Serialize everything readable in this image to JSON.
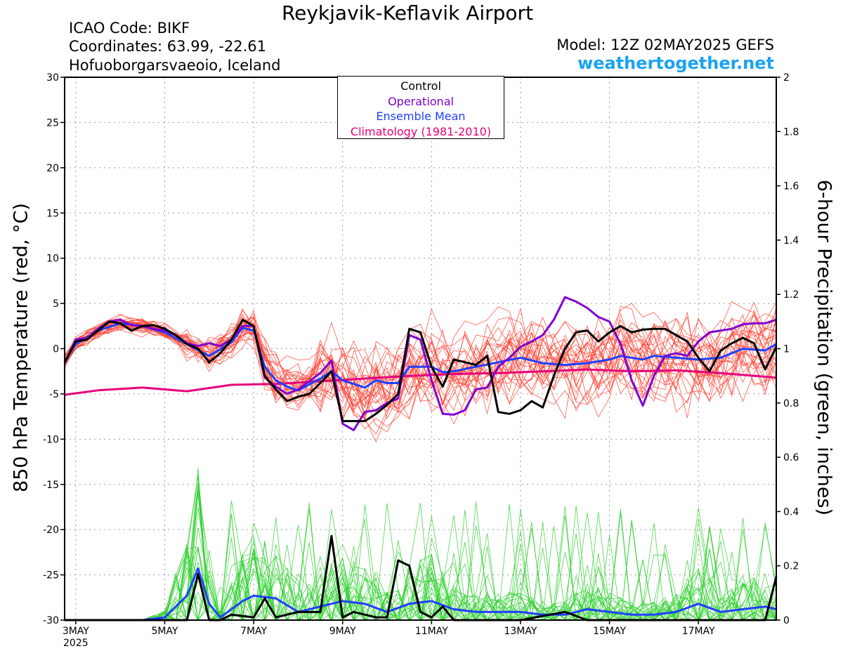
{
  "header": {
    "title": "Reykjavik-Keflavik Airport",
    "icao": "ICAO Code: BIKF",
    "coordinates": "Coordinates: 63.99, -22.61",
    "place": "Hofuoborgarsvaeoio, Iceland",
    "model": "Model: 12Z 02MAY2025 GEFS",
    "site": "weathertogether.net"
  },
  "colors": {
    "control": "#000000",
    "operational": "#8000d0",
    "ensemble_mean": "#2040ff",
    "climatology": "#e8007a",
    "members_temp": "#ff4030",
    "members_precip": "#30d030",
    "site": "#1aa3f0"
  },
  "legend": [
    {
      "label": "Control",
      "color": "#000000"
    },
    {
      "label": "Operational",
      "color": "#8000d0"
    },
    {
      "label": "Ensemble Mean",
      "color": "#2040ff"
    },
    {
      "label": "Climatology (1981-2010)",
      "color": "#e8007a"
    }
  ],
  "chart_data": {
    "type": "line",
    "ylabel": "850 hPa Temperature (red, °C)",
    "y2label": "6-hour Precipitation (green, inches)",
    "ylim": [
      -30,
      30
    ],
    "y2lim": [
      0,
      2
    ],
    "yticks": [
      "30",
      "25",
      "20",
      "15",
      "10",
      "5",
      "0",
      "-5",
      "-10",
      "-15",
      "-20",
      "-25",
      "-30"
    ],
    "y2ticks": [
      "2",
      "1.8",
      "1.6",
      "1.4",
      "1.2",
      "1",
      "0.8",
      "0.6",
      "0.4",
      "0.2",
      "0"
    ],
    "xlim": [
      2.75,
      18.75
    ],
    "xticks": [
      {
        "day": 3,
        "label": "3MAY",
        "sub": "2025"
      },
      {
        "day": 5,
        "label": "5MAY"
      },
      {
        "day": 7,
        "label": "7MAY"
      },
      {
        "day": 9,
        "label": "9MAY"
      },
      {
        "day": 11,
        "label": "11MAY"
      },
      {
        "day": 13,
        "label": "13MAY"
      },
      {
        "day": 15,
        "label": "15MAY"
      },
      {
        "day": 17,
        "label": "17MAY"
      }
    ],
    "grid": true,
    "x_unit": "day of May 2025 (UTC)",
    "series": [
      {
        "name": "Control",
        "axis": "temp",
        "points": [
          [
            2.75,
            -1.5
          ],
          [
            3.0,
            0.8
          ],
          [
            3.25,
            1.0
          ],
          [
            3.5,
            2.0
          ],
          [
            3.75,
            3.0
          ],
          [
            4.0,
            2.8
          ],
          [
            4.25,
            2.0
          ],
          [
            4.5,
            2.5
          ],
          [
            4.75,
            2.6
          ],
          [
            5.0,
            2.2
          ],
          [
            5.25,
            1.5
          ],
          [
            5.5,
            0.5
          ],
          [
            5.75,
            0.0
          ],
          [
            6.0,
            -1.5
          ],
          [
            6.25,
            -0.5
          ],
          [
            6.5,
            1.0
          ],
          [
            6.75,
            3.2
          ],
          [
            7.0,
            2.5
          ],
          [
            7.25,
            -3.0
          ],
          [
            7.5,
            -4.5
          ],
          [
            7.75,
            -5.8
          ],
          [
            8.0,
            -5.3
          ],
          [
            8.25,
            -5.0
          ],
          [
            8.5,
            -3.8
          ],
          [
            8.75,
            -2.5
          ],
          [
            9.0,
            -8.0
          ],
          [
            9.25,
            -8.0
          ],
          [
            9.5,
            -8.0
          ],
          [
            9.75,
            -7.2
          ],
          [
            10.0,
            -6.2
          ],
          [
            10.25,
            -5.0
          ],
          [
            10.5,
            2.2
          ],
          [
            10.75,
            1.8
          ],
          [
            11.0,
            -2.0
          ],
          [
            11.25,
            -4.2
          ],
          [
            11.5,
            -1.2
          ],
          [
            11.75,
            -1.5
          ],
          [
            12.0,
            -1.8
          ],
          [
            12.25,
            -0.8
          ],
          [
            12.5,
            -7.0
          ],
          [
            12.75,
            -7.2
          ],
          [
            13.0,
            -6.8
          ],
          [
            13.25,
            -5.8
          ],
          [
            13.5,
            -6.5
          ],
          [
            13.75,
            -3.0
          ],
          [
            14.0,
            0.0
          ],
          [
            14.25,
            1.8
          ],
          [
            14.5,
            2.0
          ],
          [
            14.75,
            0.8
          ],
          [
            15.0,
            1.8
          ],
          [
            15.25,
            2.5
          ],
          [
            15.5,
            1.8
          ],
          [
            15.75,
            2.1
          ],
          [
            16.0,
            2.2
          ],
          [
            16.25,
            2.2
          ],
          [
            16.5,
            1.5
          ],
          [
            16.75,
            0.8
          ],
          [
            17.0,
            -1.0
          ],
          [
            17.25,
            -2.5
          ],
          [
            17.5,
            -0.2
          ],
          [
            17.75,
            0.6
          ],
          [
            18.0,
            1.2
          ],
          [
            18.25,
            0.6
          ],
          [
            18.5,
            -2.3
          ],
          [
            18.75,
            0.2
          ]
        ]
      },
      {
        "name": "Operational",
        "axis": "temp",
        "points": [
          [
            2.75,
            -1.6
          ],
          [
            3.0,
            1.0
          ],
          [
            3.25,
            1.2
          ],
          [
            3.5,
            2.2
          ],
          [
            3.75,
            3.0
          ],
          [
            4.0,
            3.2
          ],
          [
            4.25,
            2.6
          ],
          [
            4.5,
            2.5
          ],
          [
            4.75,
            2.2
          ],
          [
            5.0,
            2.0
          ],
          [
            5.25,
            1.5
          ],
          [
            5.5,
            0.6
          ],
          [
            5.75,
            0.3
          ],
          [
            6.0,
            0.6
          ],
          [
            6.25,
            0.3
          ],
          [
            6.5,
            1.0
          ],
          [
            6.75,
            2.5
          ],
          [
            7.0,
            2.5
          ],
          [
            7.25,
            -3.2
          ],
          [
            7.5,
            -4.2
          ],
          [
            7.75,
            -5.0
          ],
          [
            8.0,
            -4.5
          ],
          [
            8.25,
            -3.6
          ],
          [
            8.5,
            -2.7
          ],
          [
            8.75,
            -1.3
          ],
          [
            9.0,
            -8.3
          ],
          [
            9.25,
            -9.0
          ],
          [
            9.5,
            -7.0
          ],
          [
            9.75,
            -6.8
          ],
          [
            10.0,
            -6.0
          ],
          [
            10.25,
            -5.5
          ],
          [
            10.5,
            1.5
          ],
          [
            10.75,
            1.0
          ],
          [
            11.0,
            -3.5
          ],
          [
            11.25,
            -7.2
          ],
          [
            11.5,
            -7.3
          ],
          [
            11.75,
            -6.8
          ],
          [
            12.0,
            -4.5
          ],
          [
            12.25,
            -4.3
          ],
          [
            12.5,
            -2.0
          ],
          [
            12.75,
            -1.0
          ],
          [
            13.0,
            0.2
          ],
          [
            13.25,
            0.8
          ],
          [
            13.5,
            1.5
          ],
          [
            13.75,
            3.2
          ],
          [
            14.0,
            5.7
          ],
          [
            14.25,
            5.2
          ],
          [
            14.5,
            4.5
          ],
          [
            14.75,
            3.5
          ],
          [
            15.0,
            3.0
          ],
          [
            15.25,
            0.5
          ],
          [
            15.5,
            -3.5
          ],
          [
            15.75,
            -6.3
          ],
          [
            16.0,
            -3.0
          ],
          [
            16.25,
            -0.8
          ],
          [
            16.5,
            -0.5
          ],
          [
            16.75,
            -0.8
          ],
          [
            17.0,
            0.8
          ],
          [
            17.25,
            1.8
          ],
          [
            17.5,
            2.0
          ],
          [
            17.75,
            2.2
          ],
          [
            18.0,
            2.7
          ],
          [
            18.25,
            2.8
          ],
          [
            18.5,
            2.8
          ],
          [
            18.75,
            3.2
          ]
        ]
      },
      {
        "name": "Ensemble Mean",
        "axis": "temp",
        "points": [
          [
            2.75,
            -1.4
          ],
          [
            3.0,
            0.5
          ],
          [
            3.5,
            2.0
          ],
          [
            4.0,
            2.8
          ],
          [
            4.5,
            2.5
          ],
          [
            5.0,
            1.8
          ],
          [
            5.5,
            0.5
          ],
          [
            6.0,
            -0.8
          ],
          [
            6.5,
            0.7
          ],
          [
            6.75,
            2.3
          ],
          [
            7.0,
            2.0
          ],
          [
            7.25,
            -2.0
          ],
          [
            7.5,
            -3.5
          ],
          [
            7.75,
            -4.2
          ],
          [
            8.0,
            -4.6
          ],
          [
            8.5,
            -3.3
          ],
          [
            8.75,
            -2.5
          ],
          [
            9.0,
            -3.5
          ],
          [
            9.5,
            -4.3
          ],
          [
            9.75,
            -3.5
          ],
          [
            10.0,
            -3.8
          ],
          [
            10.25,
            -3.8
          ],
          [
            10.5,
            -2.0
          ],
          [
            11.0,
            -2.0
          ],
          [
            11.25,
            -2.6
          ],
          [
            11.5,
            -2.5
          ],
          [
            12.0,
            -2.0
          ],
          [
            12.5,
            -1.5
          ],
          [
            13.0,
            -1.0
          ],
          [
            13.5,
            -1.6
          ],
          [
            14.0,
            -1.8
          ],
          [
            14.5,
            -1.6
          ],
          [
            15.0,
            -1.2
          ],
          [
            15.25,
            -0.8
          ],
          [
            15.75,
            -1.2
          ],
          [
            16.0,
            -0.8
          ],
          [
            16.5,
            -1.0
          ],
          [
            17.0,
            -1.2
          ],
          [
            17.5,
            -1.0
          ],
          [
            18.0,
            0.0
          ],
          [
            18.5,
            -0.2
          ],
          [
            18.75,
            0.5
          ]
        ]
      },
      {
        "name": "Climatology (1981-2010)",
        "axis": "temp",
        "points": [
          [
            2.75,
            -5.1
          ],
          [
            3.5,
            -4.6
          ],
          [
            4.5,
            -4.3
          ],
          [
            5.5,
            -4.7
          ],
          [
            6.5,
            -4.0
          ],
          [
            7.5,
            -3.9
          ],
          [
            8.5,
            -3.6
          ],
          [
            9.5,
            -3.3
          ],
          [
            10.5,
            -3.0
          ],
          [
            11.5,
            -2.8
          ],
          [
            12.5,
            -2.7
          ],
          [
            13.5,
            -2.5
          ],
          [
            14.5,
            -2.3
          ],
          [
            15.5,
            -2.5
          ],
          [
            16.5,
            -2.4
          ],
          [
            17.5,
            -2.7
          ],
          [
            18.75,
            -3.2
          ]
        ]
      },
      {
        "name": "Control",
        "axis": "precip",
        "points": [
          [
            2.75,
            0.0
          ],
          [
            5.25,
            0.0
          ],
          [
            5.5,
            0.0
          ],
          [
            5.75,
            0.17
          ],
          [
            6.0,
            0.0
          ],
          [
            6.25,
            0.0
          ],
          [
            6.5,
            0.02
          ],
          [
            7.0,
            0.01
          ],
          [
            7.25,
            0.08
          ],
          [
            7.5,
            0.01
          ],
          [
            8.0,
            0.03
          ],
          [
            8.5,
            0.03
          ],
          [
            8.75,
            0.31
          ],
          [
            9.0,
            0.01
          ],
          [
            9.25,
            0.03
          ],
          [
            9.75,
            0.01
          ],
          [
            10.0,
            0.01
          ],
          [
            10.25,
            0.22
          ],
          [
            10.5,
            0.2
          ],
          [
            10.75,
            0.03
          ],
          [
            11.0,
            0.01
          ],
          [
            11.25,
            0.05
          ],
          [
            11.5,
            0.0
          ],
          [
            12.0,
            0.0
          ],
          [
            13.0,
            0.0
          ],
          [
            14.0,
            0.03
          ],
          [
            14.5,
            0.0
          ],
          [
            18.5,
            0.0
          ],
          [
            18.75,
            0.16
          ]
        ]
      },
      {
        "name": "Ensemble Mean",
        "axis": "precip",
        "points": [
          [
            2.75,
            0.0
          ],
          [
            4.5,
            0.0
          ],
          [
            5.0,
            0.01
          ],
          [
            5.5,
            0.09
          ],
          [
            5.75,
            0.19
          ],
          [
            6.0,
            0.06
          ],
          [
            6.25,
            0.01
          ],
          [
            6.75,
            0.07
          ],
          [
            7.0,
            0.09
          ],
          [
            7.5,
            0.08
          ],
          [
            8.0,
            0.03
          ],
          [
            8.5,
            0.05
          ],
          [
            9.0,
            0.07
          ],
          [
            9.5,
            0.06
          ],
          [
            10.0,
            0.03
          ],
          [
            10.5,
            0.06
          ],
          [
            11.0,
            0.07
          ],
          [
            11.5,
            0.04
          ],
          [
            12.0,
            0.03
          ],
          [
            12.5,
            0.03
          ],
          [
            13.0,
            0.03
          ],
          [
            13.5,
            0.02
          ],
          [
            14.0,
            0.02
          ],
          [
            14.5,
            0.04
          ],
          [
            15.0,
            0.03
          ],
          [
            15.5,
            0.02
          ],
          [
            16.0,
            0.02
          ],
          [
            16.5,
            0.03
          ],
          [
            17.0,
            0.06
          ],
          [
            17.5,
            0.03
          ],
          [
            18.0,
            0.04
          ],
          [
            18.5,
            0.05
          ],
          [
            18.75,
            0.04
          ]
        ]
      }
    ],
    "members_temp_envelope": {
      "type": "ensemble spaghetti",
      "count": 30
    },
    "members_precip": {
      "type": "ensemble spaghetti",
      "count": 30
    }
  }
}
